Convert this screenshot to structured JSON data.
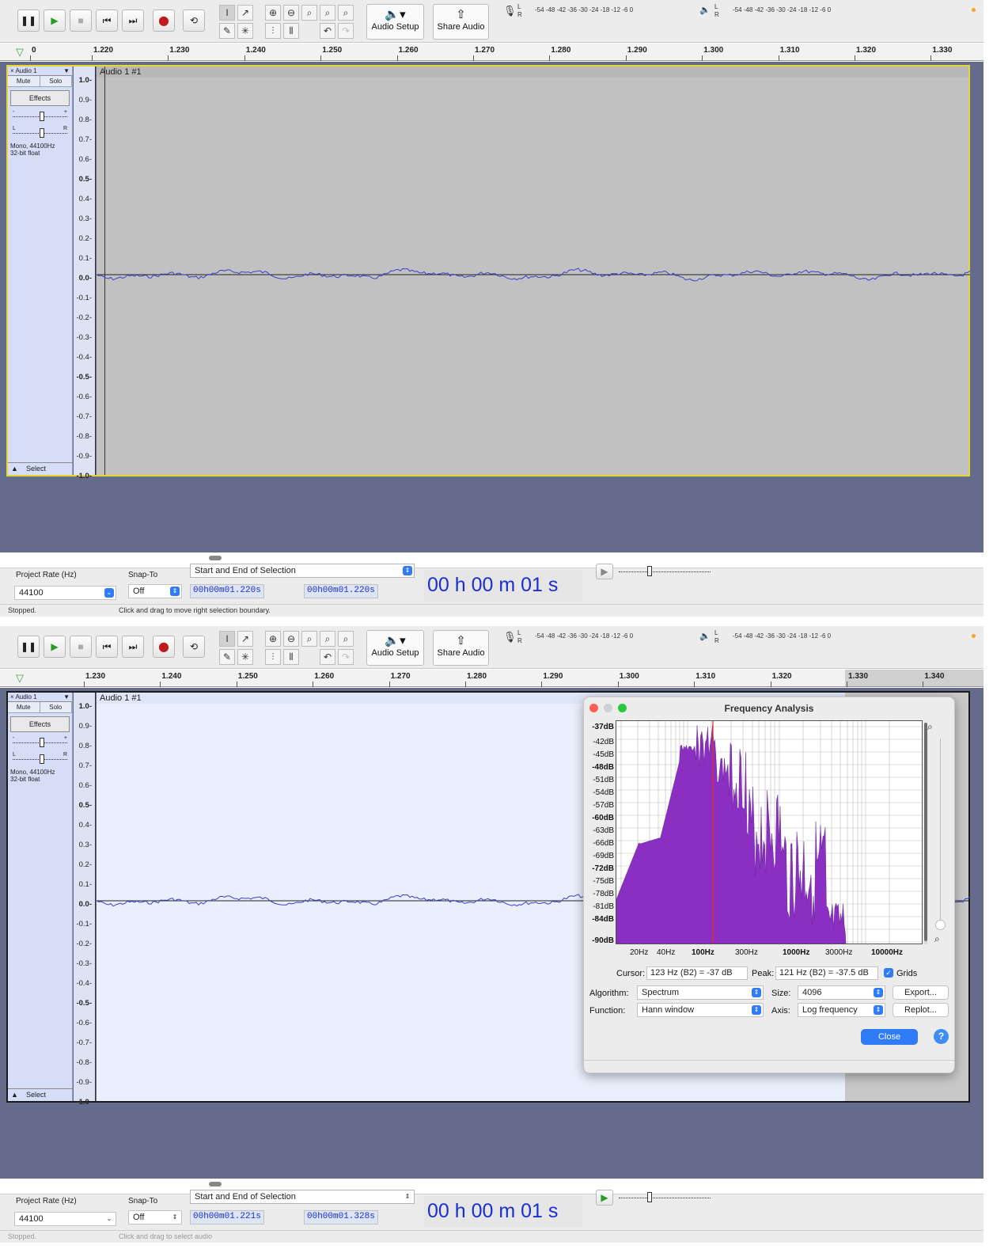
{
  "toolbar": {
    "audio_setup_label": "Audio Setup",
    "share_audio_label": "Share Audio",
    "meter_scale": "-54 -48 -42 -36 -30 -24 -18 -12 -6 0",
    "meter_lr_top": "L",
    "meter_lr_bottom": "R"
  },
  "panel1": {
    "ruler_ticks": [
      "0",
      "1.220",
      "1.230",
      "1.240",
      "1.250",
      "1.260",
      "1.270",
      "1.280",
      "1.290",
      "1.300",
      "1.310",
      "1.320",
      "1.330"
    ],
    "track": {
      "name": "Audio 1",
      "clip_title": "Audio 1 #1",
      "mute_label": "Mute",
      "solo_label": "Solo",
      "effects_label": "Effects",
      "gain_minus": "-",
      "gain_plus": "+",
      "pan_left": "L",
      "pan_right": "R",
      "info_line1": "Mono, 44100Hz",
      "info_line2": "32-bit float",
      "select_label": "Select",
      "close_glyph": "×"
    },
    "selection_bar": {
      "project_rate_label": "Project Rate (Hz)",
      "project_rate_value": "44100",
      "snap_to_label": "Snap-To",
      "snap_to_value": "Off",
      "selection_mode": "Start and End of Selection",
      "start_time": "00h00m01.220s",
      "end_time": "00h00m01.220s",
      "big_time": "00 h 00 m 01 s"
    },
    "status": {
      "left": "Stopped.",
      "right": "Click and drag to move right selection boundary."
    }
  },
  "panel2": {
    "ruler_ticks": [
      "1.230",
      "1.240",
      "1.250",
      "1.260",
      "1.270",
      "1.280",
      "1.290",
      "1.300",
      "1.310",
      "1.320",
      "1.330",
      "1.340"
    ],
    "track": {
      "name": "Audio 1",
      "clip_title": "Audio 1 #1",
      "mute_label": "Mute",
      "solo_label": "Solo",
      "effects_label": "Effects",
      "gain_minus": "-",
      "gain_plus": "+",
      "pan_left": "L",
      "pan_right": "R",
      "info_line1": "Mono, 44100Hz",
      "info_line2": "32-bit float",
      "select_label": "Select",
      "close_glyph": "×"
    },
    "selection_bar": {
      "project_rate_label": "Project Rate (Hz)",
      "project_rate_value": "44100",
      "snap_to_label": "Snap-To",
      "snap_to_value": "Off",
      "selection_mode": "Start and End of Selection",
      "start_time": "00h00m01.221s",
      "end_time": "00h00m01.328s",
      "big_time": "00 h 00 m 01 s"
    },
    "status": {
      "left": "Stopped.",
      "right": "Click and drag to select audio"
    }
  },
  "amplitude_labels": [
    "1.0",
    "0.9",
    "0.8",
    "0.7",
    "0.6",
    "0.5",
    "0.4",
    "0.3",
    "0.2",
    "0.1",
    "0.0",
    "-0.1",
    "-0.2",
    "-0.3",
    "-0.4",
    "-0.5",
    "-0.6",
    "-0.7",
    "-0.8",
    "-0.9",
    "-1.0"
  ],
  "frequency_dialog": {
    "title": "Frequency Analysis",
    "db_labels": [
      "-37dB",
      "-42dB",
      "-45dB",
      "-48dB",
      "-51dB",
      "-54dB",
      "-57dB",
      "-60dB",
      "-63dB",
      "-66dB",
      "-69dB",
      "-72dB",
      "-75dB",
      "-78dB",
      "-81dB",
      "-84dB",
      "-90dB"
    ],
    "hz_labels": [
      "20Hz",
      "40Hz",
      "100Hz",
      "300Hz",
      "1000Hz",
      "3000Hz",
      "10000Hz"
    ],
    "cursor_label": "Cursor:",
    "cursor_value": "123 Hz (B2) = -37 dB",
    "peak_label": "Peak:",
    "peak_value": "121 Hz (B2) = -37.5 dB",
    "grids_label": "Grids",
    "grids_checked": true,
    "algorithm_label": "Algorithm:",
    "algorithm_value": "Spectrum",
    "size_label": "Size:",
    "size_value": "4096",
    "function_label": "Function:",
    "function_value": "Hann window",
    "axis_label": "Axis:",
    "axis_value": "Log frequency",
    "export_label": "Export...",
    "replot_label": "Replot...",
    "close_label": "Close",
    "help_glyph": "?"
  },
  "colors": {
    "waveform": "#3c3fc8",
    "spectrum_fill": "#8a2fc2",
    "track_background": "#656b8b",
    "selected_track_border": "#e6d633",
    "accent_blue": "#2f7cf6"
  }
}
